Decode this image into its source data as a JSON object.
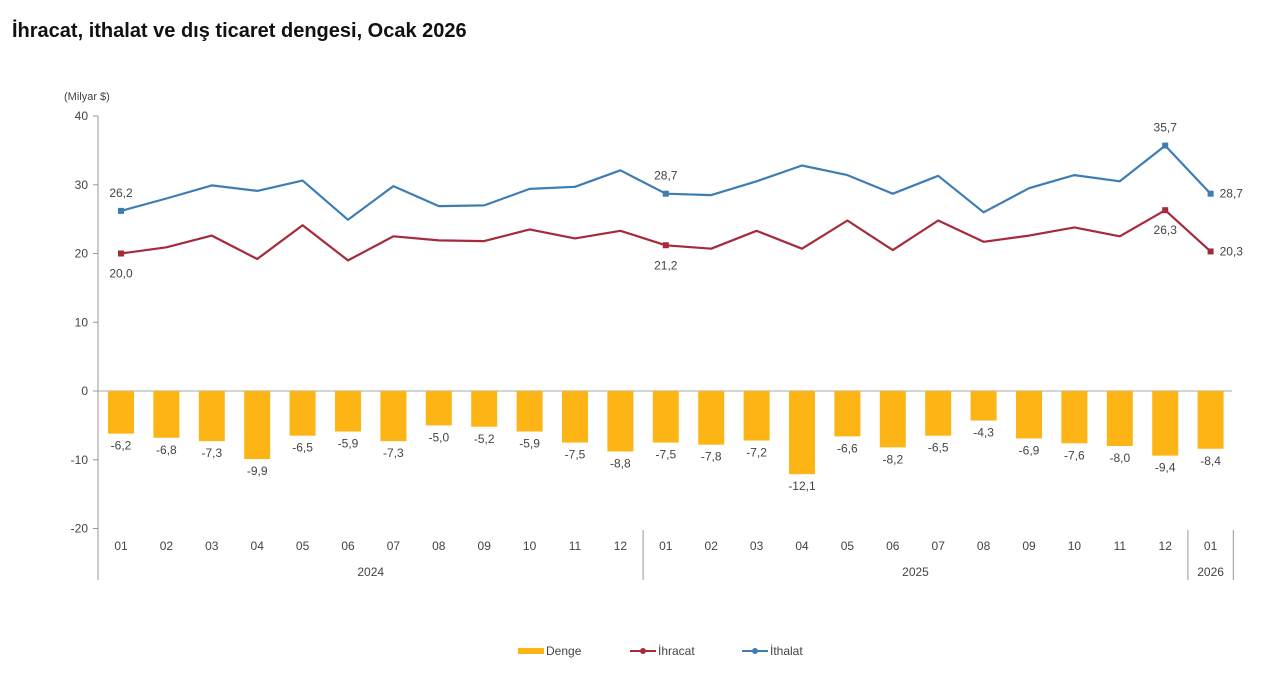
{
  "title": "İhracat, ithalat ve dış ticaret dengesi, Ocak 2026",
  "chart_data": {
    "type": "bar+line",
    "title": "İhracat, ithalat ve dış ticaret dengesi, Ocak 2026",
    "ylabel": "(Milyar $)",
    "ylim": [
      -20,
      40
    ],
    "yticks": [
      40,
      30,
      20,
      10,
      0,
      -10,
      -20
    ],
    "categories": [
      "01",
      "02",
      "03",
      "04",
      "05",
      "06",
      "07",
      "08",
      "09",
      "10",
      "11",
      "12",
      "01",
      "02",
      "03",
      "04",
      "05",
      "06",
      "07",
      "08",
      "09",
      "10",
      "11",
      "12",
      "01"
    ],
    "year_groups": [
      {
        "label": "2024",
        "count": 12
      },
      {
        "label": "2025",
        "count": 12
      },
      {
        "label": "2026",
        "count": 1
      }
    ],
    "series": [
      {
        "name": "Denge",
        "type": "bar",
        "color": "#FDB515",
        "values": [
          -6.2,
          -6.8,
          -7.3,
          -9.9,
          -6.5,
          -5.9,
          -7.3,
          -5.0,
          -5.2,
          -5.9,
          -7.5,
          -8.8,
          -7.5,
          -7.8,
          -7.2,
          -12.1,
          -6.6,
          -8.2,
          -6.5,
          -4.3,
          -6.9,
          -7.6,
          -8.0,
          -9.4,
          -8.4
        ],
        "labels": [
          "-6,2",
          "-6,8",
          "-7,3",
          "-9,9",
          "-6,5",
          "-5,9",
          "-7,3",
          "-5,0",
          "-5,2",
          "-5,9",
          "-7,5",
          "-8,8",
          "-7,5",
          "-7,8",
          "-7,2",
          "-12,1",
          "-6,6",
          "-8,2",
          "-6,5",
          "-4,3",
          "-6,9",
          "-7,6",
          "-8,0",
          "-9,4",
          "-8,4"
        ]
      },
      {
        "name": "İhracat",
        "type": "line",
        "color": "#A52A3A",
        "values": [
          20.0,
          20.9,
          22.6,
          19.2,
          24.1,
          19.0,
          22.5,
          21.9,
          21.8,
          23.5,
          22.2,
          23.3,
          21.2,
          20.7,
          23.3,
          20.7,
          24.8,
          20.5,
          24.8,
          21.7,
          22.6,
          23.8,
          22.5,
          26.3,
          20.3
        ],
        "point_labels": [
          {
            "index": 0,
            "text": "20,0",
            "pos": "below"
          },
          {
            "index": 12,
            "text": "21,2",
            "pos": "below"
          },
          {
            "index": 23,
            "text": "26,3",
            "pos": "below"
          },
          {
            "index": 24,
            "text": "20,3",
            "pos": "right"
          }
        ],
        "markers": [
          0,
          12,
          23,
          24
        ]
      },
      {
        "name": "İthalat",
        "type": "line",
        "color": "#3D7DB4",
        "values": [
          26.2,
          28.0,
          29.9,
          29.1,
          30.6,
          24.9,
          29.8,
          26.9,
          27.0,
          29.4,
          29.7,
          32.1,
          28.7,
          28.5,
          30.5,
          32.8,
          31.4,
          28.7,
          31.3,
          26.0,
          29.5,
          31.4,
          30.5,
          35.7,
          28.7
        ],
        "point_labels": [
          {
            "index": 0,
            "text": "26,2",
            "pos": "above"
          },
          {
            "index": 12,
            "text": "28,7",
            "pos": "above"
          },
          {
            "index": 23,
            "text": "35,7",
            "pos": "above"
          },
          {
            "index": 24,
            "text": "28,7",
            "pos": "right"
          }
        ],
        "markers": [
          0,
          12,
          23,
          24
        ]
      }
    ],
    "legend": {
      "position": "bottom",
      "items": [
        {
          "name": "Denge",
          "kind": "bar",
          "color": "#FDB515"
        },
        {
          "name": "İhracat",
          "kind": "line",
          "color": "#A52A3A"
        },
        {
          "name": "İthalat",
          "kind": "line",
          "color": "#3D7DB4"
        }
      ]
    },
    "grid": false
  }
}
